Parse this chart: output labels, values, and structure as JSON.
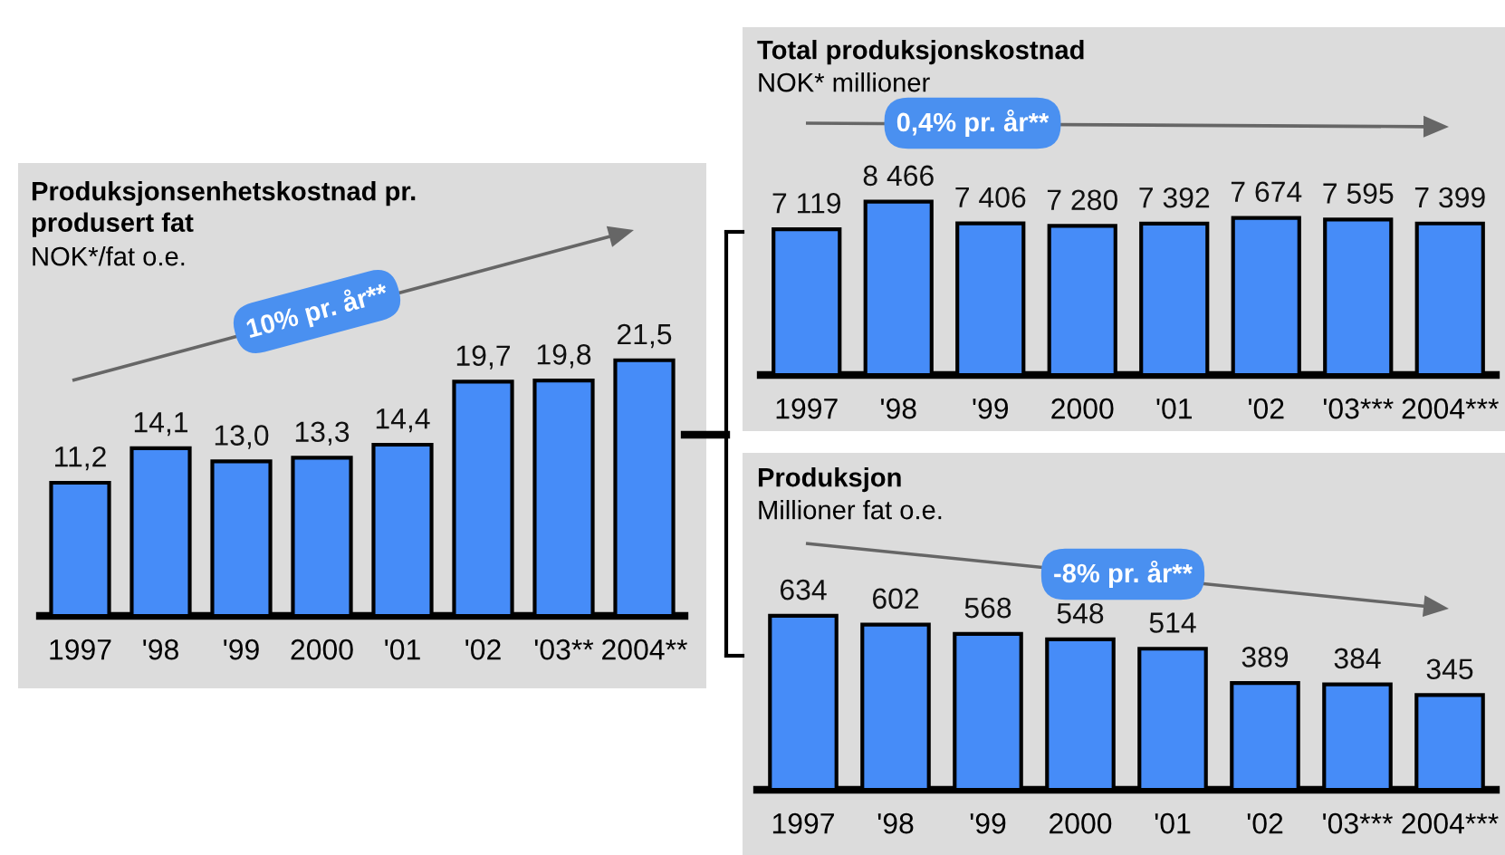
{
  "chart_data": [
    {
      "type": "bar",
      "title": "Produksjonsenhetskostnad pr. produsert fat",
      "subtitle": "NOK*/fat o.e.",
      "categories": [
        "1997",
        "'98",
        "'99",
        "2000",
        "'01",
        "'02",
        "'03**",
        "2004**"
      ],
      "color": "#468cf8",
      "values": [
        11.2,
        14.1,
        13.0,
        13.3,
        14.4,
        19.7,
        19.8,
        21.5
      ],
      "value_labels": [
        "11,2",
        "14,1",
        "13,0",
        "13,3",
        "14,4",
        "19,7",
        "19,8",
        "21,5"
      ],
      "annotations": [
        "10% pr. år**"
      ]
    },
    {
      "type": "bar",
      "title": "Total produksjonskostnad",
      "subtitle": "NOK* millioner",
      "categories": [
        "1997",
        "'98",
        "'99",
        "2000",
        "'01",
        "'02",
        "'03***",
        "2004***"
      ],
      "color": "#468cf8",
      "values": [
        7119,
        8466,
        7406,
        7280,
        7392,
        7674,
        7595,
        7399
      ],
      "value_labels": [
        "7 119",
        "8 466",
        "7 406",
        "7 280",
        "7 392",
        "7 674",
        "7 595",
        "7 399"
      ],
      "annotations": [
        "0,4% pr. år**"
      ]
    },
    {
      "type": "bar",
      "title": "Produksjon",
      "subtitle": "Millioner fat o.e.",
      "categories": [
        "1997",
        "'98",
        "'99",
        "2000",
        "'01",
        "'02",
        "'03***",
        "2004***"
      ],
      "color": "#468cf8",
      "values": [
        634,
        602,
        568,
        548,
        514,
        389,
        384,
        345
      ],
      "value_labels": [
        "634",
        "602",
        "568",
        "548",
        "514",
        "389",
        "384",
        "345"
      ],
      "annotations": [
        "-8% pr. år**"
      ]
    }
  ]
}
